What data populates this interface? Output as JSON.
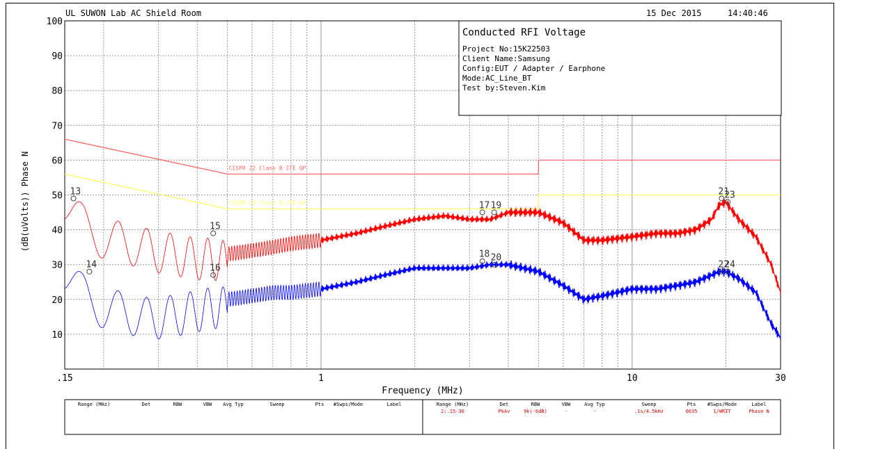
{
  "header": {
    "lab": "UL SUWON Lab AC Shield Room",
    "date": "15 Dec 2015",
    "time": "14:40:46"
  },
  "info_box": {
    "title": "Conducted RFI Voltage",
    "lines": [
      "Project No:15K22503",
      "Client Name:Samsung",
      "Config:EUT / Adapter / Earphone",
      "Mode:AC_Line_BT",
      "Test by:Steven.Kim"
    ]
  },
  "legend_table": {
    "headers": [
      "Range (MHz)",
      "Det",
      "RBW",
      "VBW",
      "Avg Typ",
      "Sweep",
      "Pts",
      "#Swps/Mode",
      "Label"
    ],
    "right_row": [
      "2:.15-30",
      "PkAv",
      "9k(-6dB)",
      "-",
      "-",
      ".1s/4.5kHz",
      "6635",
      "1/WRIT",
      "Phase N"
    ]
  },
  "colors": {
    "qp_trace": "#ff0000",
    "av_trace": "#0000ff",
    "qp_limit": "#ff6666",
    "av_limit": "#ffff66",
    "grid": "#999999"
  },
  "chart_data": {
    "type": "line",
    "title": "Conducted RFI Voltage",
    "xlabel": "Frequency (MHz)",
    "ylabel": "(dB(uVolts)) Phase N",
    "xscale": "log",
    "xlim": [
      0.15,
      30
    ],
    "ylim": [
      0,
      100
    ],
    "x_tick_labels": [
      ".15",
      "1",
      "10",
      "30"
    ],
    "x_tick_values": [
      0.15,
      1,
      10,
      30
    ],
    "y_ticks": [
      10,
      20,
      30,
      40,
      50,
      60,
      70,
      80,
      90,
      100
    ],
    "grid": true,
    "limits": [
      {
        "name": "CISPR 22 Class B ITE QP",
        "x": [
          0.15,
          0.5,
          0.5,
          5,
          5,
          30
        ],
        "y": [
          66,
          56,
          56,
          56,
          60,
          60
        ]
      },
      {
        "name": "CISPR 22 Class B ITE AV",
        "x": [
          0.15,
          0.5,
          0.5,
          5,
          5,
          30
        ],
        "y": [
          56,
          46,
          46,
          46,
          50,
          50
        ]
      }
    ],
    "series": [
      {
        "x": [
          0.15,
          0.16,
          0.17,
          0.18,
          0.2,
          0.22,
          0.25,
          0.27,
          0.3,
          0.35,
          0.4,
          0.45,
          0.5,
          0.6,
          0.7,
          0.8,
          1,
          1.3,
          1.6,
          2,
          2.5,
          3,
          3.5,
          4,
          5,
          6,
          7,
          8,
          10,
          12,
          14,
          16,
          18,
          19,
          20,
          22,
          25,
          28,
          30
        ],
        "y": [
          50,
          47,
          44,
          42,
          40,
          39,
          38,
          37,
          36,
          35,
          34,
          34,
          33,
          34,
          35,
          36,
          37,
          39,
          41,
          43,
          44,
          43,
          43,
          45,
          45,
          42,
          37,
          37,
          38,
          39,
          39,
          40,
          43,
          47,
          48,
          43,
          38,
          30,
          22
        ]
      },
      {
        "x": [
          0.15,
          0.16,
          0.17,
          0.18,
          0.2,
          0.22,
          0.25,
          0.27,
          0.3,
          0.35,
          0.4,
          0.45,
          0.5,
          0.6,
          0.7,
          0.8,
          1,
          1.3,
          1.6,
          2,
          2.5,
          3,
          3.5,
          4,
          5,
          6,
          7,
          8,
          10,
          12,
          14,
          16,
          18,
          19,
          20,
          22,
          25,
          28,
          30
        ],
        "y": [
          30,
          27,
          24,
          22,
          20,
          19,
          18,
          17,
          17,
          18,
          19,
          20,
          20,
          21,
          22,
          22,
          23,
          25,
          27,
          29,
          29,
          29,
          30,
          30,
          28,
          24,
          20,
          21,
          23,
          23,
          24,
          25,
          27,
          28,
          28,
          26,
          22,
          13,
          9
        ]
      }
    ],
    "markers": [
      {
        "label": "13",
        "x": 0.16,
        "y": 49
      },
      {
        "label": "14",
        "x": 0.18,
        "y": 28
      },
      {
        "label": "15",
        "x": 0.45,
        "y": 39
      },
      {
        "label": "16",
        "x": 0.45,
        "y": 27
      },
      {
        "label": "17",
        "x": 3.3,
        "y": 45
      },
      {
        "label": "19",
        "x": 3.6,
        "y": 45
      },
      {
        "label": "18",
        "x": 3.3,
        "y": 31
      },
      {
        "label": "20",
        "x": 3.6,
        "y": 30
      },
      {
        "label": "21",
        "x": 19.4,
        "y": 49
      },
      {
        "label": "23",
        "x": 20.3,
        "y": 48
      },
      {
        "label": "22",
        "x": 19.4,
        "y": 28
      },
      {
        "label": "24",
        "x": 20.3,
        "y": 28
      }
    ]
  }
}
